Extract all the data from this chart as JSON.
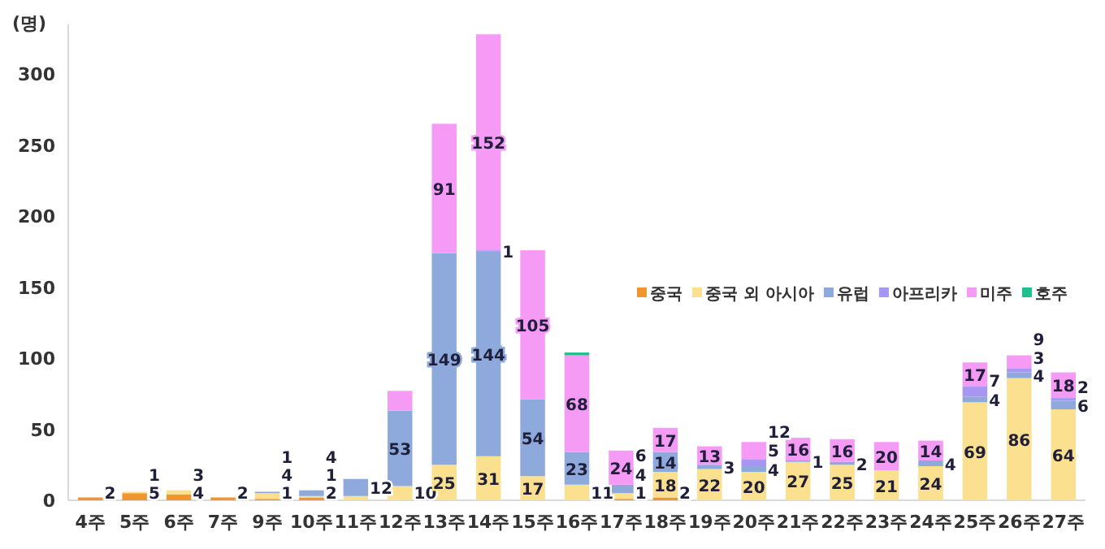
{
  "chart_data": {
    "type": "bar",
    "stacked": true,
    "ylabel": "(명)",
    "categories": [
      "4주",
      "5주",
      "6주",
      "7주",
      "9주",
      "10주",
      "11주",
      "12주",
      "13주",
      "14주",
      "15주",
      "16주",
      "17주",
      "18주",
      "19주",
      "20주",
      "21주",
      "22주",
      "23주",
      "24주",
      "25주",
      "26주",
      "27주"
    ],
    "series": [
      {
        "name": "중국",
        "color": "#f0962e",
        "values": [
          2,
          5,
          4,
          2,
          1,
          2,
          0,
          0,
          0,
          0,
          0,
          0,
          1,
          2,
          0,
          0,
          0,
          0,
          0,
          0,
          0,
          0,
          0
        ],
        "value_labels": [
          "2",
          "5",
          "4",
          "2",
          "1",
          "2",
          null,
          null,
          null,
          null,
          null,
          null,
          "1",
          "2",
          null,
          null,
          null,
          null,
          null,
          null,
          null,
          null,
          null
        ]
      },
      {
        "name": "중국 외 아시아",
        "color": "#fbe08f",
        "values": [
          0,
          1,
          3,
          0,
          4,
          1,
          3,
          10,
          25,
          31,
          17,
          11,
          4,
          18,
          22,
          20,
          27,
          25,
          21,
          24,
          69,
          86,
          64
        ],
        "value_labels": [
          null,
          "1",
          "3",
          null,
          "4",
          "1",
          null,
          "10",
          "25",
          "31",
          "17",
          "11",
          "4",
          "18",
          "22",
          "20",
          "27",
          "25",
          "21",
          "24",
          "69",
          "86",
          "64"
        ]
      },
      {
        "name": "유럽",
        "color": "#8eaadc",
        "values": [
          0,
          0,
          0,
          0,
          1,
          4,
          12,
          53,
          149,
          144,
          54,
          23,
          6,
          14,
          3,
          4,
          1,
          2,
          0,
          4,
          4,
          4,
          6
        ],
        "value_labels": [
          null,
          null,
          null,
          null,
          "1",
          "4",
          "12",
          "53",
          "149",
          "144",
          "54",
          "23",
          "6",
          "14",
          "3",
          "4",
          "1",
          "2",
          null,
          "4",
          "4",
          "4",
          "6"
        ]
      },
      {
        "name": "아프리카",
        "color": "#a897f2",
        "values": [
          0,
          0,
          0,
          0,
          0,
          0,
          0,
          0,
          0,
          1,
          0,
          0,
          0,
          0,
          0,
          5,
          0,
          0,
          0,
          0,
          7,
          3,
          2
        ],
        "value_labels": [
          null,
          null,
          null,
          null,
          null,
          null,
          null,
          null,
          null,
          "1",
          null,
          null,
          null,
          null,
          null,
          "5",
          null,
          null,
          null,
          null,
          "7",
          "3",
          "2"
        ]
      },
      {
        "name": "미주",
        "color": "#f59af5",
        "values": [
          0,
          0,
          0,
          0,
          0,
          0,
          0,
          14,
          91,
          152,
          105,
          68,
          24,
          17,
          13,
          12,
          16,
          16,
          20,
          14,
          17,
          9,
          18
        ],
        "value_labels": [
          null,
          null,
          null,
          null,
          null,
          null,
          null,
          null,
          "91",
          "152",
          "105",
          "68",
          "24",
          "17",
          "13",
          "12",
          "16",
          "16",
          "20",
          "14",
          "17",
          "9",
          "18"
        ]
      },
      {
        "name": "호주",
        "color": "#1fbf8f",
        "values": [
          0,
          0,
          0,
          0,
          0,
          0,
          0,
          0,
          0,
          0,
          0,
          2,
          0,
          0,
          0,
          0,
          0,
          0,
          0,
          0,
          0,
          0,
          0
        ]
      }
    ],
    "ylim": [
      0,
      335
    ],
    "yticks": [
      0,
      50,
      100,
      150,
      200,
      250,
      300
    ],
    "grid": false,
    "legend": "right"
  }
}
